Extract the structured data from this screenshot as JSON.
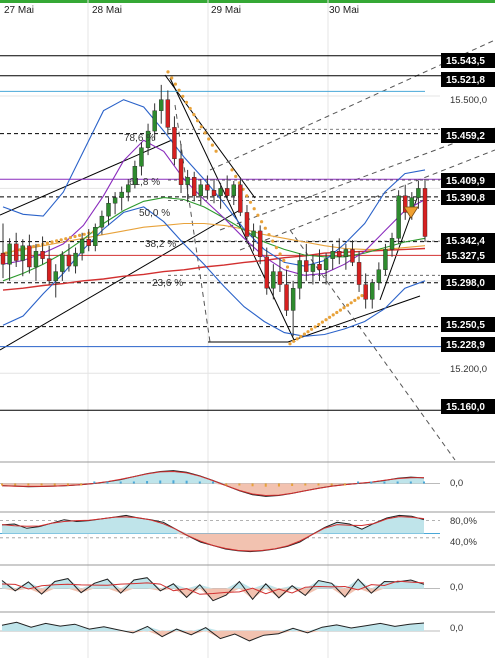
{
  "colors": {
    "up": "#2e8b2e",
    "down": "#d62020",
    "wick": "#333333",
    "tag_bg": "#000000",
    "tag_text": "#ffffff",
    "blue": "#2a62c9",
    "red": "#d23030",
    "purple": "#8a2bbd",
    "green": "#2d9a2d",
    "orange": "#e8a23a",
    "cyan": "#4aa8d8",
    "grid": "#e4e4e4",
    "fill_teal": "#bfe4ea",
    "fill_salmon": "#f2c2b0",
    "top_bar": "#35a835"
  },
  "chart_data": [
    {
      "type": "candlestick",
      "name": "",
      "x_labels": [
        "27 Mai",
        "28 Mai",
        "29 Mai",
        "30 Mai"
      ],
      "ylim": [
        15130,
        15580
      ],
      "grid": true,
      "price_axis_labels": [
        "15.500,0",
        "15.200,0"
      ],
      "price_tags": [
        {
          "label": "15.543,5",
          "value": 15543.5
        },
        {
          "label": "15.521,8",
          "value": 15521.8
        },
        {
          "label": "15.459,2",
          "value": 15459.2
        },
        {
          "label": "15.409,9",
          "value": 15409.9
        },
        {
          "label": "15.390,8",
          "value": 15390.8
        },
        {
          "label": "15.342,4",
          "value": 15342.4
        },
        {
          "label": "15.327,5",
          "value": 15327.5
        },
        {
          "label": "15.298,0",
          "value": 15298.0
        },
        {
          "label": "15.250,5",
          "value": 15250.5
        },
        {
          "label": "15.228,9",
          "value": 15228.9
        },
        {
          "label": "15.160,0",
          "value": 15160.0
        }
      ],
      "fibonacci_labels": [
        {
          "label": "78,6 %",
          "value": 15464
        },
        {
          "label": "61,8 %",
          "value": 15409
        },
        {
          "label": "50,0 %",
          "value": 15387
        },
        {
          "label": "38,2 %",
          "value": 15343
        },
        {
          "label": "23,6 %",
          "value": 15306
        }
      ],
      "candles": [
        [
          15330,
          15362,
          15303,
          15318
        ],
        [
          15318,
          15346,
          15300,
          15340
        ],
        [
          15340,
          15352,
          15315,
          15322
        ],
        [
          15322,
          15345,
          15305,
          15338
        ],
        [
          15338,
          15350,
          15308,
          15315
        ],
        [
          15315,
          15340,
          15300,
          15332
        ],
        [
          15332,
          15348,
          15318,
          15324
        ],
        [
          15324,
          15338,
          15296,
          15300
        ],
        [
          15300,
          15318,
          15282,
          15310
        ],
        [
          15310,
          15332,
          15300,
          15328
        ],
        [
          15328,
          15340,
          15310,
          15316
        ],
        [
          15316,
          15336,
          15308,
          15330
        ],
        [
          15330,
          15352,
          15322,
          15345
        ],
        [
          15345,
          15356,
          15332,
          15338
        ],
        [
          15338,
          15362,
          15332,
          15358
        ],
        [
          15358,
          15376,
          15350,
          15370
        ],
        [
          15370,
          15390,
          15360,
          15384
        ],
        [
          15384,
          15396,
          15372,
          15390
        ],
        [
          15390,
          15402,
          15376,
          15396
        ],
        [
          15396,
          15410,
          15386,
          15404
        ],
        [
          15404,
          15430,
          15400,
          15424
        ],
        [
          15424,
          15450,
          15414,
          15444
        ],
        [
          15444,
          15470,
          15436,
          15462
        ],
        [
          15462,
          15492,
          15452,
          15484
        ],
        [
          15484,
          15512,
          15470,
          15496
        ],
        [
          15496,
          15506,
          15458,
          15466
        ],
        [
          15466,
          15478,
          15425,
          15432
        ],
        [
          15432,
          15448,
          15395,
          15404
        ],
        [
          15404,
          15420,
          15385,
          15412
        ],
        [
          15412,
          15418,
          15386,
          15392
        ],
        [
          15392,
          15410,
          15382,
          15404
        ],
        [
          15404,
          15414,
          15388,
          15398
        ],
        [
          15398,
          15410,
          15384,
          15392
        ],
        [
          15392,
          15406,
          15378,
          15400
        ],
        [
          15400,
          15414,
          15388,
          15392
        ],
        [
          15392,
          15408,
          15382,
          15404
        ],
        [
          15404,
          15412,
          15370,
          15374
        ],
        [
          15374,
          15382,
          15340,
          15348
        ],
        [
          15348,
          15362,
          15332,
          15354
        ],
        [
          15354,
          15360,
          15318,
          15326
        ],
        [
          15326,
          15336,
          15285,
          15292
        ],
        [
          15292,
          15318,
          15280,
          15310
        ],
        [
          15310,
          15324,
          15288,
          15296
        ],
        [
          15296,
          15312,
          15262,
          15268
        ],
        [
          15268,
          15300,
          15240,
          15292
        ],
        [
          15292,
          15330,
          15280,
          15322
        ],
        [
          15322,
          15340,
          15300,
          15310
        ],
        [
          15310,
          15328,
          15296,
          15318
        ],
        [
          15318,
          15334,
          15300,
          15312
        ],
        [
          15312,
          15330,
          15296,
          15324
        ],
        [
          15324,
          15340,
          15312,
          15332
        ],
        [
          15332,
          15346,
          15318,
          15326
        ],
        [
          15326,
          15340,
          15312,
          15334
        ],
        [
          15334,
          15344,
          15316,
          15320
        ],
        [
          15320,
          15332,
          15288,
          15296
        ],
        [
          15296,
          15308,
          15270,
          15280
        ],
        [
          15280,
          15302,
          15270,
          15298
        ],
        [
          15298,
          15320,
          15290,
          15312
        ],
        [
          15312,
          15340,
          15306,
          15334
        ],
        [
          15334,
          15352,
          15326,
          15346
        ],
        [
          15346,
          15398,
          15340,
          15392
        ],
        [
          15392,
          15404,
          15366,
          15374
        ],
        [
          15374,
          15396,
          15366,
          15390
        ],
        [
          15390,
          15408,
          15378,
          15400
        ],
        [
          15400,
          15410,
          15342,
          15348
        ]
      ],
      "overlay_series": [
        {
          "color_key": "red",
          "points": [
            15290,
            15292,
            15295,
            15297,
            15300,
            15302,
            15305,
            15307,
            15310,
            15312,
            15315,
            15317,
            15320,
            15322,
            15325,
            15327,
            15330,
            15331,
            15332,
            15333,
            15334,
            15335
          ]
        },
        {
          "color_key": "orange",
          "points": [
            15330,
            15334,
            15338,
            15342,
            15346,
            15350,
            15354,
            15358,
            15360,
            15362,
            15362,
            15360,
            15356,
            15350,
            15346,
            15342,
            15338,
            15335,
            15334,
            15334,
            15336,
            15338
          ]
        },
        {
          "color_key": "green",
          "points": [
            15300,
            15308,
            15318,
            15330,
            15345,
            15362,
            15376,
            15386,
            15390,
            15388,
            15380,
            15368,
            15355,
            15342,
            15334,
            15328,
            15326,
            15326,
            15330,
            15336,
            15342,
            15346
          ]
        },
        {
          "color_key": "purple",
          "points": [
            15318,
            15322,
            15330,
            15340,
            15360,
            15392,
            15430,
            15452,
            15440,
            15410,
            15388,
            15368,
            15346,
            15326,
            15312,
            15306,
            15308,
            15318,
            15332,
            15354,
            15376,
            15388
          ]
        },
        {
          "color_key": "blue",
          "points": [
            15380,
            15372,
            15370,
            15396,
            15440,
            15484,
            15496,
            15488,
            15462,
            15434,
            15410,
            15384,
            15356,
            15334,
            15320,
            15316,
            15322,
            15340,
            15362,
            15396,
            15416,
            15420
          ]
        },
        {
          "color_key": "blue",
          "points": [
            15252,
            15262,
            15286,
            15308,
            15334,
            15356,
            15374,
            15380,
            15364,
            15340,
            15318,
            15294,
            15272,
            15256,
            15244,
            15240,
            15242,
            15248,
            15256,
            15270,
            15292,
            15300
          ]
        }
      ]
    },
    {
      "type": "area",
      "name": "",
      "axis_labels": [
        "0,0"
      ],
      "ylim": [
        -1,
        1
      ],
      "values": [
        -0.1,
        -0.12,
        -0.15,
        -0.14,
        -0.12,
        -0.1,
        -0.06,
        0.0,
        0.08,
        0.18,
        0.32,
        0.46,
        0.56,
        0.6,
        0.52,
        0.36,
        0.14,
        -0.1,
        -0.34,
        -0.52,
        -0.6,
        -0.56,
        -0.46,
        -0.34,
        -0.22,
        -0.12,
        -0.05,
        0.0,
        0.06,
        0.14,
        0.24,
        0.3,
        0.26
      ]
    },
    {
      "type": "area",
      "name": "",
      "axis_labels": [
        "80,0%",
        "40,0%"
      ],
      "ylim": [
        0,
        100
      ],
      "values": [
        70,
        72,
        62,
        66,
        74,
        82,
        78,
        80,
        84,
        88,
        92,
        86,
        82,
        76,
        60,
        44,
        30,
        22,
        14,
        10,
        8,
        10,
        14,
        20,
        30,
        48,
        64,
        76,
        72,
        60,
        74,
        86,
        92,
        90,
        82
      ]
    },
    {
      "type": "area",
      "name": "",
      "axis_labels": [
        "0,0"
      ],
      "ylim": [
        -1,
        1
      ],
      "values": [
        0.34,
        -0.1,
        0.28,
        -0.24,
        0.3,
        0.42,
        -0.18,
        0.22,
        0.4,
        -0.2,
        0.36,
        0.46,
        -0.1,
        0.2,
        -0.38,
        0.16,
        -0.52,
        -0.28,
        0.3,
        -0.46,
        0.2,
        -0.4,
        0.12,
        -0.3,
        0.34,
        0.22,
        -0.36,
        0.4,
        -0.2,
        0.3,
        0.28,
        0.36,
        0.18
      ]
    },
    {
      "type": "area",
      "name": "",
      "axis_labels": [
        "0,0"
      ],
      "ylim": [
        -1,
        1
      ],
      "values": [
        0.3,
        0.46,
        0.2,
        0.4,
        0.26,
        0.36,
        0.1,
        0.22,
        0.06,
        -0.1,
        0.24,
        -0.3,
        0.1,
        -0.2,
        0.18,
        -0.4,
        -0.16,
        -0.52,
        -0.22,
        -0.14,
        0.14,
        -0.1,
        0.2,
        0.32,
        0.16,
        0.28,
        0.4,
        0.24,
        0.36,
        0.42
      ]
    }
  ]
}
